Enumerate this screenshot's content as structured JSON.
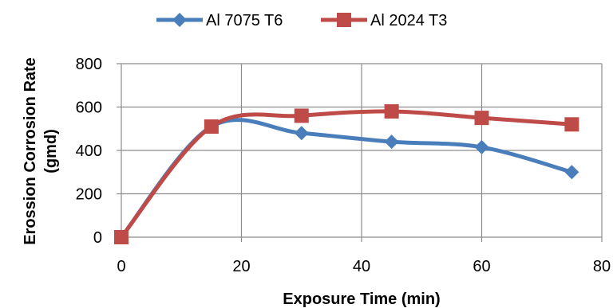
{
  "chart_data": {
    "type": "line",
    "title": "",
    "xlabel": "Exposure Time  (min)",
    "ylabel_line1": "Erossion Corrosion Rate",
    "ylabel_line2": "(gmd)",
    "xlim": [
      0,
      80
    ],
    "ylim": [
      0,
      800
    ],
    "xticks": [
      0,
      20,
      40,
      60,
      80
    ],
    "yticks": [
      0,
      200,
      400,
      600,
      800
    ],
    "grid": true,
    "smooth": true,
    "legend_position": "top-center",
    "series": [
      {
        "name": "Al 7075 T6",
        "color": "#4a7ebb",
        "marker": "diamond",
        "x": [
          0,
          15,
          30,
          45,
          60,
          75
        ],
        "y": [
          0,
          510,
          480,
          440,
          415,
          300
        ]
      },
      {
        "name": "Al 2024 T3",
        "color": "#be4b48",
        "marker": "square",
        "x": [
          0,
          15,
          30,
          45,
          60,
          75
        ],
        "y": [
          0,
          510,
          560,
          580,
          550,
          520
        ]
      }
    ]
  }
}
